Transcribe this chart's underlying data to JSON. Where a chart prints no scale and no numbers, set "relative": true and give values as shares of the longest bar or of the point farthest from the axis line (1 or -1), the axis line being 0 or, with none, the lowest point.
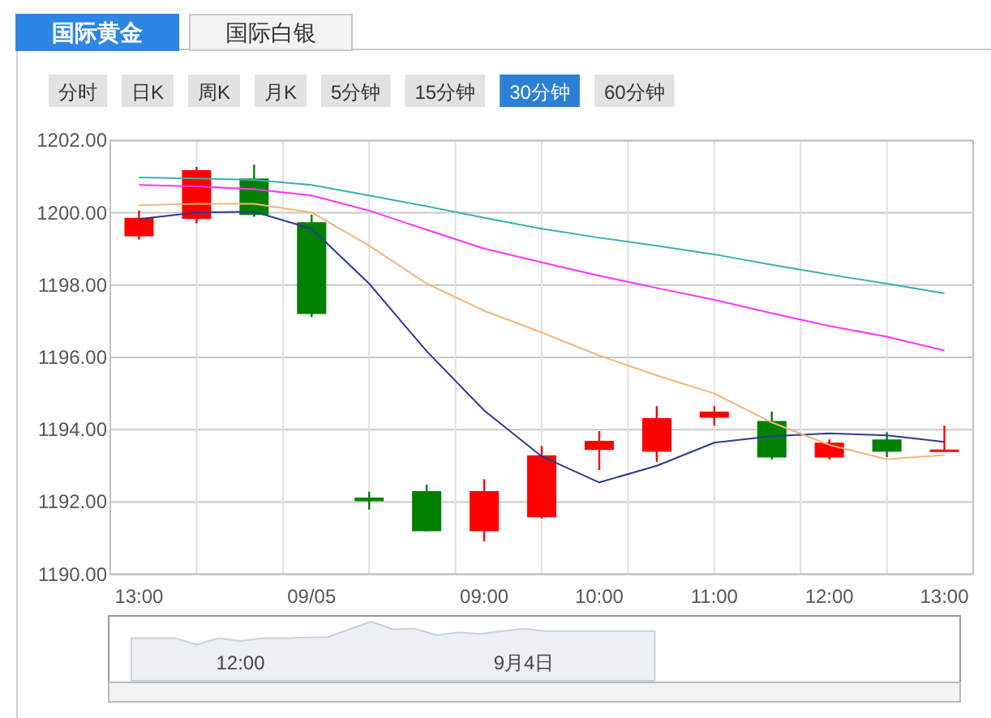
{
  "chart_data": [
    {
      "type": "other",
      "annotations": [
        "国际黄金",
        "国际白银",
        "分时",
        "日K",
        "周K",
        "月K",
        "5分钟",
        "15分钟",
        "30分钟",
        "60分钟"
      ]
    },
    {
      "type": "candlestick",
      "categories": [
        "13:00",
        null,
        null,
        "09/05",
        null,
        null,
        "09:00",
        null,
        "10:00",
        null,
        "11:00",
        null,
        "12:00",
        null,
        "13:00"
      ],
      "ohlc": [
        [
          1199.35,
          1200.06,
          1199.26,
          1199.86
        ],
        [
          1199.83,
          1201.27,
          1199.71,
          1201.18
        ],
        [
          1200.95,
          1201.33,
          1199.89,
          1199.94
        ],
        [
          1199.74,
          1199.95,
          1197.11,
          1197.2
        ],
        [
          1192.12,
          1192.28,
          1191.79,
          1192.02
        ],
        [
          1192.3,
          1192.48,
          1191.19,
          1191.19
        ],
        [
          1191.19,
          1192.63,
          1190.91,
          1192.3
        ],
        [
          1191.58,
          1193.55,
          1191.54,
          1193.29
        ],
        [
          1193.44,
          1193.96,
          1192.88,
          1193.69
        ],
        [
          1193.39,
          1194.65,
          1193.11,
          1194.32
        ],
        [
          1194.33,
          1194.65,
          1194.11,
          1194.5
        ],
        [
          1194.24,
          1194.5,
          1193.17,
          1193.23
        ],
        [
          1193.23,
          1193.73,
          1193.17,
          1193.64
        ],
        [
          1193.73,
          1193.93,
          1193.24,
          1193.39
        ],
        [
          1193.42,
          1194.11,
          1193.4,
          1193.45
        ]
      ],
      "colors": [
        "#ff0000",
        "#ff0000",
        "#008000",
        "#008000",
        "#008000",
        "#008000",
        "#ff0000",
        "#ff0000",
        "#ff0000",
        "#ff0000",
        "#ff0000",
        "#008000",
        "#ff0000",
        "#008000",
        "#ff0000"
      ],
      "series": [
        {
          "type": "line",
          "color": "#2f3a8f",
          "values": [
            1199.83,
            1200.01,
            1200.03,
            1199.56,
            1198.04,
            1196.17,
            1194.53,
            1193.26,
            1192.54,
            1193.0,
            1193.64,
            1193.82,
            1193.9,
            1193.84,
            1193.66
          ]
        },
        {
          "type": "line",
          "color": "#f5b57c",
          "values": [
            1200.21,
            1200.25,
            1200.25,
            1200.01,
            1199.09,
            1198.04,
            1197.29,
            1196.69,
            1196.05,
            1195.5,
            1195.0,
            1194.2,
            1193.58,
            1193.18,
            1193.3
          ]
        },
        {
          "type": "line",
          "color": "#ff33ff",
          "values": [
            1200.77,
            1200.73,
            1200.65,
            1200.48,
            1200.06,
            1199.53,
            1199.01,
            1198.63,
            1198.26,
            1197.92,
            1197.59,
            1197.22,
            1196.87,
            1196.57,
            1196.19
          ]
        },
        {
          "type": "line",
          "color": "#3aafb0",
          "values": [
            1200.98,
            1200.95,
            1200.91,
            1200.77,
            1200.48,
            1200.18,
            1199.86,
            1199.56,
            1199.31,
            1199.09,
            1198.85,
            1198.56,
            1198.29,
            1198.04,
            1197.77
          ]
        }
      ],
      "ylim": [
        1190,
        1202
      ],
      "yticks": [
        {
          "value": 1190,
          "label": "1190.00"
        },
        {
          "value": 1192,
          "label": "1192.00"
        },
        {
          "value": 1194,
          "label": "1194.00"
        },
        {
          "value": 1196,
          "label": "1196.00"
        },
        {
          "value": 1198,
          "label": "1198.00"
        },
        {
          "value": 1200,
          "label": "1200.00"
        },
        {
          "value": 1202,
          "label": "1202.00"
        }
      ],
      "grid": true
    },
    {
      "type": "area",
      "relative": true,
      "categories": [
        null,
        null,
        null,
        null,
        null,
        "12:00",
        null,
        null,
        null,
        null,
        null,
        null,
        null,
        null,
        null,
        null,
        null,
        null,
        "9月4日",
        null,
        null,
        null,
        null,
        null,
        null,
        null,
        null,
        null,
        null,
        null
      ],
      "series": [
        {
          "color": "#c8d3e0",
          "values": [
            0.72,
            0.72,
            0.72,
            0.61,
            0.72,
            0.67,
            0.72,
            0.72,
            0.73,
            0.74,
            0.87,
            1,
            0.87,
            0.88,
            0.77,
            0.82,
            0.79,
            0.84,
            0.88,
            0.84,
            0.84,
            0.84,
            0.84,
            0.84,
            0.84,
            null,
            null,
            null,
            null,
            null
          ]
        }
      ]
    }
  ]
}
